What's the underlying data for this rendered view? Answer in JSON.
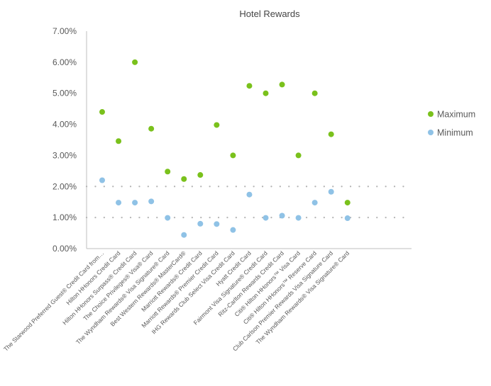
{
  "chart_data": {
    "type": "scatter",
    "title": "Hotel Rewards",
    "xlabel": "",
    "ylabel": "",
    "ylim": [
      0,
      7
    ],
    "yticks": [
      0,
      1,
      2,
      3,
      4,
      5,
      6,
      7
    ],
    "ytick_labels": [
      "0.00%",
      "1.00%",
      "2.00%",
      "3.00%",
      "4.00%",
      "5.00%",
      "6.00%",
      "7.00%"
    ],
    "grid": "dotted reference lines at 1% and 2%",
    "legend_position": "right",
    "categories": [
      "The Starwood Preferred Guest® Credit Card from…",
      "Hilton HHonors Credit Card",
      "Hilton HHonors Surpass® Credit Card",
      "The Choice Privileges® Visa® Card",
      "The Wyndham Rewards® Visa Signature® Card",
      "Best Western Rewards® MasterCard®",
      "Marriott Rewards® Credit Card",
      "Marriott Rewards® Premier Credit Card",
      "IHG Rewards Club Select Visa Credit Card",
      "Hyatt Credit Card",
      "Fairmont Visa Signature® Credit Card",
      "Ritz-Carlton Rewards Credit Card",
      "Citi® Hilton HHonors™ Visa Card",
      "Citi® Hilton HHonors™ Reserve Card",
      "Club Carlson Premier Rewards Visa Signature Card",
      "The Wyndham Rewards® Visa Signature® Card"
    ],
    "series": [
      {
        "name": "Maximum",
        "color": "#7ac11c",
        "values": [
          4.4,
          3.46,
          6.0,
          3.86,
          2.48,
          2.24,
          2.37,
          3.98,
          3.0,
          5.24,
          5.0,
          5.28,
          3.0,
          5.0,
          3.68,
          1.48
        ]
      },
      {
        "name": "Minimum",
        "color": "#8fc2e6",
        "values": [
          2.2,
          1.48,
          1.48,
          1.52,
          0.99,
          0.44,
          0.8,
          0.79,
          0.6,
          1.74,
          0.99,
          1.06,
          0.99,
          1.48,
          1.83,
          0.98
        ]
      }
    ]
  }
}
